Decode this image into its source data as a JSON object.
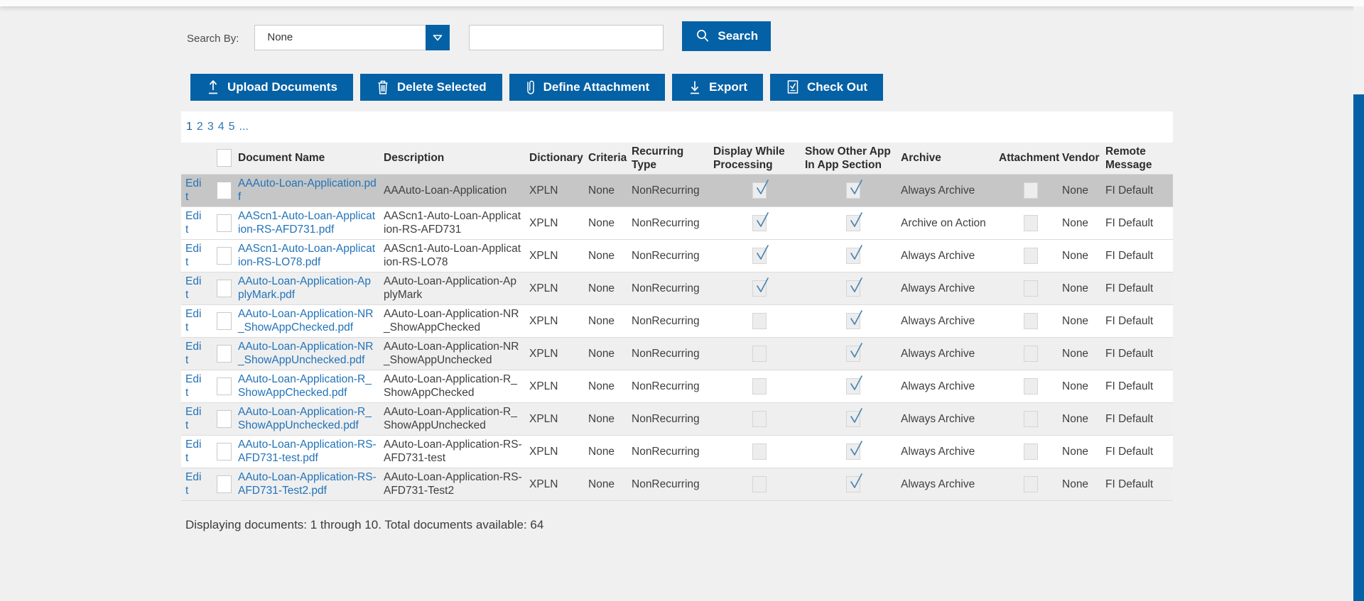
{
  "colors": {
    "accent_blue": "#0561a5",
    "link_blue": "#2273b9",
    "check_blue": "#4b87b3",
    "selected_row_gray": "#c6c6c6",
    "stripe_gray": "#efefef"
  },
  "search_bar": {
    "label": "Search By:",
    "dropdown_value": "None",
    "input_value": "",
    "search_button_label": "Search"
  },
  "toolbar": {
    "buttons": [
      {
        "label": "Upload Documents",
        "icon": "upload-icon"
      },
      {
        "label": "Delete Selected",
        "icon": "trash-icon"
      },
      {
        "label": "Define Attachment",
        "icon": "paperclip-icon"
      },
      {
        "label": "Export",
        "icon": "download-icon"
      },
      {
        "label": "Check Out",
        "icon": "checkout-icon"
      }
    ]
  },
  "pagination": {
    "items": [
      "1",
      "2",
      "3",
      "4",
      "5",
      "..."
    ],
    "current_index": 0
  },
  "table": {
    "headers": {
      "document_name": "Document Name",
      "description": "Description",
      "dictionary": "Dictionary",
      "criteria": "Criteria",
      "recurring_type": "Recurring Type",
      "display_while_processing": "Display While Processing",
      "show_other_app": "Show Other App In App Section",
      "archive": "Archive",
      "attachment": "Attachment",
      "vendor": "Vendor",
      "remote_message": "Remote Message"
    },
    "rows": [
      {
        "edit": "Edit",
        "name": "AAAuto-Loan-Application.pdf",
        "description": "AAAuto-Loan-Application",
        "dictionary": "XPLN",
        "criteria": "None",
        "recurring": "NonRecurring",
        "display_while_processing": true,
        "show_other_app": true,
        "archive": "Always Archive",
        "attachment": false,
        "vendor": "None",
        "remote": "FI Default",
        "selected": true,
        "shaded": false
      },
      {
        "edit": "Edit",
        "name": "AAScn1-Auto-Loan-Application-RS-AFD731.pdf",
        "description": "AAScn1-Auto-Loan-Application-RS-AFD731",
        "dictionary": "XPLN",
        "criteria": "None",
        "recurring": "NonRecurring",
        "display_while_processing": true,
        "show_other_app": true,
        "archive": "Archive on Action",
        "attachment": false,
        "vendor": "None",
        "remote": "FI Default",
        "selected": false,
        "shaded": false
      },
      {
        "edit": "Edit",
        "name": "AAScn1-Auto-Loan-Application-RS-LO78.pdf",
        "description": "AAScn1-Auto-Loan-Application-RS-LO78",
        "dictionary": "XPLN",
        "criteria": "None",
        "recurring": "NonRecurring",
        "display_while_processing": true,
        "show_other_app": true,
        "archive": "Always Archive",
        "attachment": false,
        "vendor": "None",
        "remote": "FI Default",
        "selected": false,
        "shaded": false
      },
      {
        "edit": "Edit",
        "name": "AAuto-Loan-Application-ApplyMark.pdf",
        "description": "AAuto-Loan-Application-ApplyMark",
        "dictionary": "XPLN",
        "criteria": "None",
        "recurring": "NonRecurring",
        "display_while_processing": true,
        "show_other_app": true,
        "archive": "Always Archive",
        "attachment": false,
        "vendor": "None",
        "remote": "FI Default",
        "selected": false,
        "shaded": true
      },
      {
        "edit": "Edit",
        "name": "AAuto-Loan-Application-NR_ShowAppChecked.pdf",
        "description": "AAuto-Loan-Application-NR_ShowAppChecked",
        "dictionary": "XPLN",
        "criteria": "None",
        "recurring": "NonRecurring",
        "display_while_processing": false,
        "show_other_app": true,
        "archive": "Always Archive",
        "attachment": false,
        "vendor": "None",
        "remote": "FI Default",
        "selected": false,
        "shaded": false
      },
      {
        "edit": "Edit",
        "name": "AAuto-Loan-Application-NR_ShowAppUnchecked.pdf",
        "description": "AAuto-Loan-Application-NR_ShowAppUnchecked",
        "dictionary": "XPLN",
        "criteria": "None",
        "recurring": "NonRecurring",
        "display_while_processing": false,
        "show_other_app": true,
        "archive": "Always Archive",
        "attachment": false,
        "vendor": "None",
        "remote": "FI Default",
        "selected": false,
        "shaded": true
      },
      {
        "edit": "Edit",
        "name": "AAuto-Loan-Application-R_ShowAppChecked.pdf",
        "description": "AAuto-Loan-Application-R_ShowAppChecked",
        "dictionary": "XPLN",
        "criteria": "None",
        "recurring": "NonRecurring",
        "display_while_processing": false,
        "show_other_app": true,
        "archive": "Always Archive",
        "attachment": false,
        "vendor": "None",
        "remote": "FI Default",
        "selected": false,
        "shaded": false
      },
      {
        "edit": "Edit",
        "name": "AAuto-Loan-Application-R_ShowAppUnchecked.pdf",
        "description": "AAuto-Loan-Application-R_ShowAppUnchecked",
        "dictionary": "XPLN",
        "criteria": "None",
        "recurring": "NonRecurring",
        "display_while_processing": false,
        "show_other_app": true,
        "archive": "Always Archive",
        "attachment": false,
        "vendor": "None",
        "remote": "FI Default",
        "selected": false,
        "shaded": true
      },
      {
        "edit": "Edit",
        "name": "AAuto-Loan-Application-RS-AFD731-test.pdf",
        "description": "AAuto-Loan-Application-RS-AFD731-test",
        "dictionary": "XPLN",
        "criteria": "None",
        "recurring": "NonRecurring",
        "display_while_processing": false,
        "show_other_app": true,
        "archive": "Always Archive",
        "attachment": false,
        "vendor": "None",
        "remote": "FI Default",
        "selected": false,
        "shaded": false
      },
      {
        "edit": "Edit",
        "name": "AAuto-Loan-Application-RS-AFD731-Test2.pdf",
        "description": "AAuto-Loan-Application-RS-AFD731-Test2",
        "dictionary": "XPLN",
        "criteria": "None",
        "recurring": "NonRecurring",
        "display_while_processing": false,
        "show_other_app": true,
        "archive": "Always Archive",
        "attachment": false,
        "vendor": "None",
        "remote": "FI Default",
        "selected": false,
        "shaded": true
      }
    ]
  },
  "footer": {
    "summary": "Displaying documents: 1 through 10. Total documents available: 64"
  }
}
